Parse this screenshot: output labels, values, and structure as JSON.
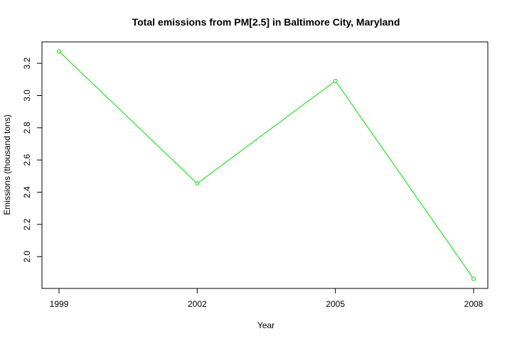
{
  "chart_data": {
    "type": "line",
    "title": "Total emissions from PM[2.5] in Baltimore City, Maryland",
    "xlabel": "Year",
    "ylabel": "Emissions (thousand tons)",
    "x": [
      1999,
      2002,
      2005,
      2008
    ],
    "values": [
      3.274,
      2.454,
      3.091,
      1.862
    ],
    "xlim": [
      1999,
      2008
    ],
    "ylim": [
      1.86,
      3.28
    ],
    "xticks": [
      "1999",
      "2002",
      "2005",
      "2008"
    ],
    "yticks": [
      "2.0",
      "2.2",
      "2.4",
      "2.6",
      "2.8",
      "3.0",
      "3.2"
    ],
    "series_color": "#00dd00",
    "marker": "open-circle",
    "grid": false
  }
}
